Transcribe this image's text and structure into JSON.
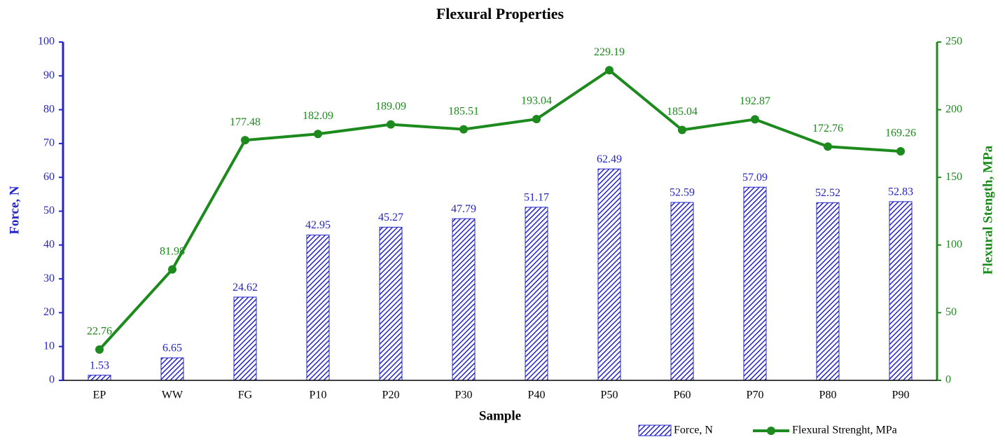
{
  "chart_data": {
    "type": "combo",
    "title": "Flexural Properties",
    "x_label": "Sample",
    "y_label": "Force, N",
    "y2_label": "Flexural Stength, MPa",
    "categories": [
      "EP",
      "WW",
      "FG",
      "P10",
      "P20",
      "P30",
      "P40",
      "P50",
      "P60",
      "P70",
      "P80",
      "P90"
    ],
    "series": [
      {
        "name": "Force, N",
        "type": "bar",
        "color": "#2424c8",
        "values": [
          1.53,
          6.65,
          24.62,
          42.95,
          45.27,
          47.79,
          51.17,
          62.49,
          52.59,
          57.09,
          52.52,
          52.83
        ]
      },
      {
        "name": "Flexural Strenght, MPa",
        "type": "line",
        "axis": "y2",
        "color": "#1c8a1c",
        "values": [
          22.76,
          81.98,
          177.48,
          182.09,
          189.09,
          185.51,
          193.04,
          229.19,
          185.04,
          192.87,
          172.76,
          169.26
        ]
      }
    ],
    "ylim": [
      0,
      100
    ],
    "yticks": [
      0,
      10,
      20,
      30,
      40,
      50,
      60,
      70,
      80,
      90,
      100
    ],
    "y2lim": [
      0,
      250
    ],
    "y2ticks": [
      0,
      50,
      100,
      150,
      200,
      250
    ],
    "legend": "bottom-right"
  }
}
